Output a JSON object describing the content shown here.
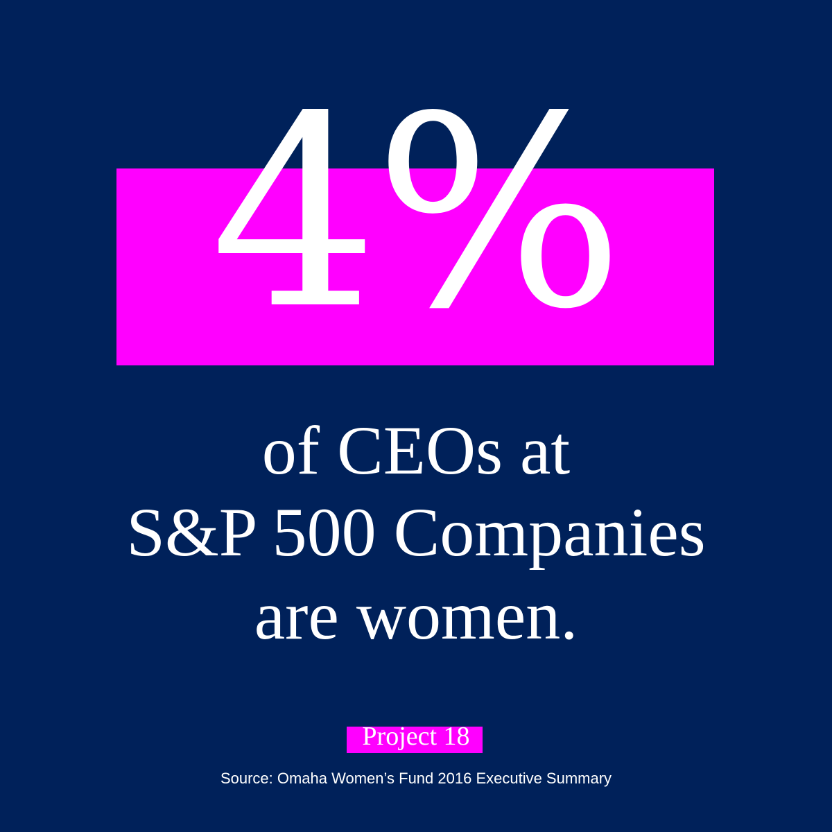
{
  "colors": {
    "background": "#00215a",
    "accent": "#ff00ff",
    "text": "#ffffff"
  },
  "stat": {
    "value": "4%"
  },
  "statement": {
    "lines": [
      "of CEOs at",
      "S&P 500 Companies",
      "are women."
    ]
  },
  "brand": {
    "name": "Project 18"
  },
  "source": {
    "text": "Source: Omaha Women’s Fund 2016 Executive Summary"
  }
}
